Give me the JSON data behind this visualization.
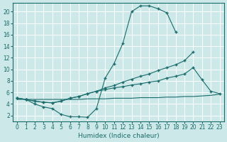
{
  "xlabel": "Humidex (Indice chaleur)",
  "bg_color": "#cce8e8",
  "grid_color": "#b8d8d8",
  "line_color": "#1a6b6b",
  "xlim": [
    -0.5,
    23.5
  ],
  "ylim": [
    1.0,
    21.5
  ],
  "xticks": [
    0,
    1,
    2,
    3,
    4,
    5,
    6,
    7,
    8,
    9,
    10,
    11,
    12,
    13,
    14,
    15,
    16,
    17,
    18,
    19,
    20,
    21,
    22,
    23
  ],
  "yticks": [
    2,
    4,
    6,
    8,
    10,
    12,
    14,
    16,
    18,
    20
  ],
  "line1_x": [
    0,
    1,
    2,
    3,
    4,
    5,
    6,
    7,
    8,
    9,
    10,
    11,
    12,
    13,
    14,
    15,
    16,
    17,
    18
  ],
  "line1_y": [
    5.0,
    4.8,
    4.0,
    3.5,
    3.2,
    2.2,
    1.8,
    1.8,
    1.7,
    3.2,
    8.5,
    11.0,
    14.5,
    20.0,
    21.0,
    21.0,
    20.5,
    19.8,
    16.5
  ],
  "line2_x": [
    0,
    1,
    2,
    3,
    4,
    5,
    6,
    7,
    8,
    9,
    10,
    11,
    12,
    13,
    14,
    15,
    16,
    17,
    18,
    19,
    20,
    21,
    22,
    23
  ],
  "line2_y": [
    5.0,
    4.8,
    4.5,
    4.3,
    4.2,
    4.5,
    5.0,
    5.3,
    5.8,
    6.2,
    6.8,
    7.2,
    7.8,
    8.3,
    8.8,
    9.2,
    9.8,
    10.3,
    10.8,
    11.5,
    13.0,
    null,
    null,
    null
  ],
  "line3_x": [
    0,
    1,
    2,
    3,
    4,
    5,
    6,
    7,
    8,
    9,
    10,
    11,
    12,
    13,
    14,
    15,
    16,
    17,
    18,
    19,
    20,
    21,
    22,
    23
  ],
  "line3_y": [
    5.0,
    4.8,
    4.5,
    4.3,
    4.2,
    4.5,
    5.0,
    5.3,
    5.8,
    6.2,
    6.5,
    6.8,
    7.0,
    7.3,
    7.5,
    7.8,
    8.0,
    8.5,
    8.8,
    9.2,
    10.3,
    8.2,
    6.2,
    5.8
  ],
  "line4_x": [
    0,
    1,
    2,
    3,
    4,
    5,
    6,
    7,
    8,
    9,
    10,
    11,
    12,
    13,
    14,
    15,
    16,
    17,
    18,
    19,
    20,
    21,
    22,
    23
  ],
  "line4_y": [
    4.8,
    4.8,
    4.8,
    4.8,
    4.8,
    4.8,
    4.8,
    4.8,
    4.9,
    4.9,
    4.9,
    5.0,
    5.0,
    5.0,
    5.1,
    5.1,
    5.1,
    5.2,
    5.2,
    5.3,
    5.3,
    5.4,
    5.5,
    5.7
  ]
}
